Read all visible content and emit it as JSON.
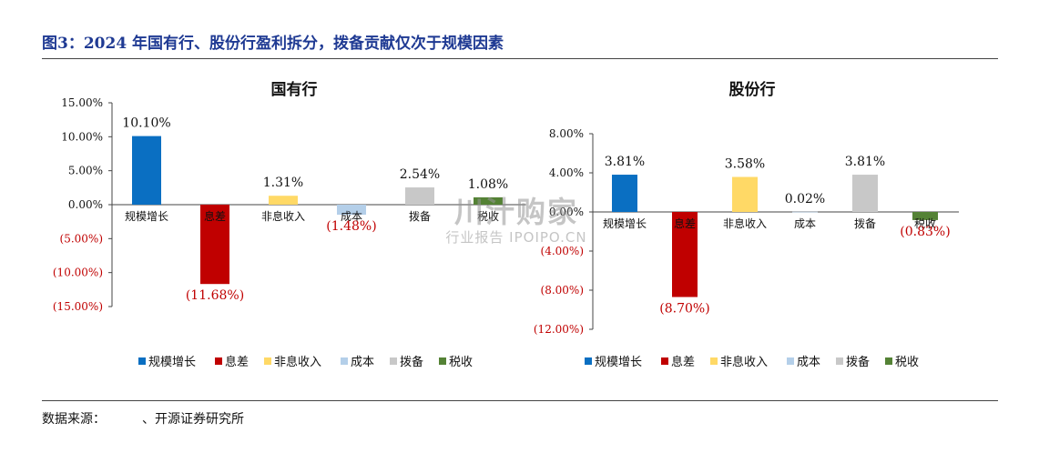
{
  "figure_title": "图3：2024 年国有行、股份行盈利拆分，拨备贡献仅次于规模因素",
  "source": {
    "label": "数据来源：",
    "text": "、开源证券研究所"
  },
  "watermark": {
    "main": "川汁购家",
    "sub": "行业报告 IPOIPO.CN"
  },
  "colors": {
    "规模增长": "#0a6fc2",
    "息差": "#c00000",
    "非息收入": "#ffd966",
    "成本": "#b4cfe9",
    "拨备": "#c8c8c8",
    "税收": "#548235",
    "negative_label": "#c00000"
  },
  "chart_data": [
    {
      "type": "bar",
      "title": "国有行",
      "categories": [
        "规模增长",
        "息差",
        "非息收入",
        "成本",
        "拨备",
        "税收"
      ],
      "values": [
        10.1,
        -11.68,
        1.31,
        -1.48,
        2.54,
        1.08
      ],
      "value_labels": [
        "10.10%",
        "(11.68%)",
        "1.31%",
        "(1.48%)",
        "2.54%",
        "1.08%"
      ],
      "ylim": [
        -15,
        15
      ],
      "yticks": [
        15,
        10,
        5,
        0,
        -5,
        -10,
        -15
      ],
      "ytick_labels": [
        "15.00%",
        "10.00%",
        "5.00%",
        "0.00%",
        "(5.00%)",
        "(10.00%)",
        "(15.00%)"
      ],
      "legend": [
        "规模增长",
        "息差",
        "非息收入",
        "成本",
        "拨备",
        "税收"
      ],
      "legend_position": "bottom",
      "grid": false
    },
    {
      "type": "bar",
      "title": "股份行",
      "categories": [
        "规模增长",
        "息差",
        "非息收入",
        "成本",
        "拨备",
        "税收"
      ],
      "values": [
        3.81,
        -8.7,
        3.58,
        0.02,
        3.81,
        -0.83
      ],
      "value_labels": [
        "3.81%",
        "(8.70%)",
        "3.58%",
        "0.02%",
        "3.81%",
        "(0.83%)"
      ],
      "ylim": [
        -12,
        8
      ],
      "yticks": [
        8,
        4,
        0,
        -4,
        -8,
        -12
      ],
      "ytick_labels": [
        "8.00%",
        "4.00%",
        "0.00%",
        "(4.00%)",
        "(8.00%)",
        "(12.00%)"
      ],
      "legend": [
        "规模增长",
        "息差",
        "非息收入",
        "成本",
        "拨备",
        "税收"
      ],
      "legend_position": "bottom",
      "grid": false
    }
  ]
}
